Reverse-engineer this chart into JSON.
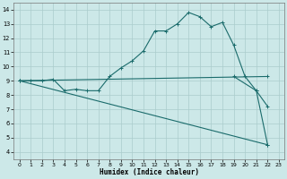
{
  "xlabel": "Humidex (Indice chaleur)",
  "bg_color": "#cce8e8",
  "line_color": "#1a6b6b",
  "grid_color": "#aacccc",
  "xlim": [
    -0.5,
    23.5
  ],
  "ylim": [
    3.5,
    14.5
  ],
  "xticks": [
    0,
    1,
    2,
    3,
    4,
    5,
    6,
    7,
    8,
    9,
    10,
    11,
    12,
    13,
    14,
    15,
    16,
    17,
    18,
    19,
    20,
    21,
    22,
    23
  ],
  "yticks": [
    4,
    5,
    6,
    7,
    8,
    9,
    10,
    11,
    12,
    13,
    14
  ],
  "series1_x": [
    0,
    1,
    2,
    3,
    4,
    5,
    6,
    7,
    8,
    9,
    10,
    11,
    12,
    13,
    14,
    15,
    16,
    17,
    18,
    19,
    20,
    21,
    22
  ],
  "series1_y": [
    9,
    9,
    9,
    9.1,
    8.3,
    8.4,
    8.3,
    8.3,
    9.3,
    9.9,
    10.4,
    11.1,
    12.5,
    12.5,
    13.0,
    13.8,
    13.5,
    12.8,
    13.1,
    11.5,
    9.3,
    8.3,
    7.2
  ],
  "series2_x": [
    0,
    22
  ],
  "series2_y": [
    9,
    9.3
  ],
  "series3_x": [
    0,
    22
  ],
  "series3_y": [
    9,
    4.5
  ],
  "series4_x": [
    19,
    21,
    22
  ],
  "series4_y": [
    9.3,
    8.3,
    4.5
  ]
}
